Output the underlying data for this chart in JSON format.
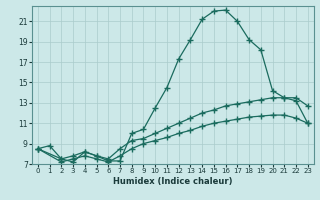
{
  "xlabel": "Humidex (Indice chaleur)",
  "bg_color": "#cce8e8",
  "grid_color": "#aacccc",
  "line_color": "#1a6b5e",
  "xlim": [
    -0.5,
    23.5
  ],
  "ylim": [
    7,
    22.5
  ],
  "xticks": [
    0,
    1,
    2,
    3,
    4,
    5,
    6,
    7,
    8,
    9,
    10,
    11,
    12,
    13,
    14,
    15,
    16,
    17,
    18,
    19,
    20,
    21,
    22,
    23
  ],
  "yticks": [
    7,
    9,
    11,
    13,
    15,
    17,
    19,
    21
  ],
  "curve1_x": [
    0,
    1,
    2,
    3,
    4,
    5,
    6,
    7,
    8,
    9,
    10,
    11,
    12,
    13,
    14,
    15,
    16,
    17,
    18,
    19,
    20,
    21,
    22,
    23
  ],
  "curve1_y": [
    8.5,
    8.8,
    7.5,
    7.2,
    8.2,
    7.8,
    7.3,
    7.3,
    10.0,
    10.4,
    12.5,
    14.5,
    17.3,
    19.2,
    21.2,
    22.0,
    22.1,
    21.0,
    19.2,
    18.2,
    14.2,
    13.5,
    13.2,
    11.0
  ],
  "curve2_x": [
    0,
    2,
    3,
    4,
    5,
    6,
    7,
    8,
    9,
    10,
    11,
    12,
    13,
    14,
    15,
    16,
    17,
    18,
    19,
    20,
    21,
    22,
    23
  ],
  "curve2_y": [
    8.5,
    7.5,
    7.8,
    8.2,
    7.8,
    7.5,
    8.5,
    9.3,
    9.5,
    10.0,
    10.5,
    11.0,
    11.5,
    12.0,
    12.3,
    12.7,
    12.9,
    13.1,
    13.3,
    13.5,
    13.5,
    13.5,
    12.7
  ],
  "curve3_x": [
    0,
    2,
    3,
    4,
    5,
    6,
    7,
    8,
    9,
    10,
    11,
    12,
    13,
    14,
    15,
    16,
    17,
    18,
    19,
    20,
    21,
    22,
    23
  ],
  "curve3_y": [
    8.5,
    7.2,
    7.5,
    7.8,
    7.5,
    7.2,
    7.8,
    8.5,
    9.0,
    9.3,
    9.6,
    10.0,
    10.3,
    10.7,
    11.0,
    11.2,
    11.4,
    11.6,
    11.7,
    11.8,
    11.8,
    11.5,
    11.0
  ]
}
